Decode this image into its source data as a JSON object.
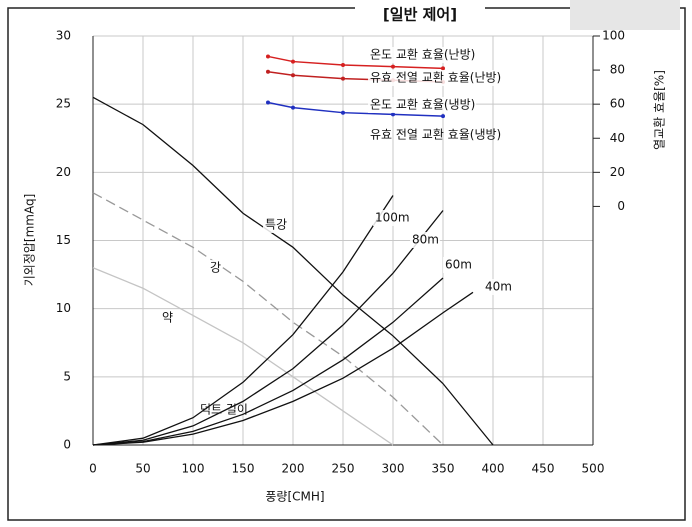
{
  "chart_data": {
    "type": "line",
    "title": "[일반 제어]",
    "x_label": "풍량[CMH]",
    "y_label": "기외정압[mmAq]",
    "y2_label": "열교환 효율[%]",
    "xlim": [
      0,
      500
    ],
    "xticks": [
      0,
      50,
      100,
      150,
      200,
      250,
      300,
      350,
      400,
      450,
      500
    ],
    "ylim": [
      0,
      30
    ],
    "yticks": [
      0,
      5,
      10,
      15,
      20,
      25,
      30
    ],
    "y2lim": [
      -140,
      100
    ],
    "y2ticks": [
      0,
      20,
      40,
      60,
      80,
      100
    ],
    "grid": true,
    "series": [
      {
        "name": "특강",
        "color": "#111111",
        "x": [
          0,
          50,
          100,
          150,
          200,
          250,
          300,
          350,
          400
        ],
        "values": [
          25.5,
          23.5,
          20.5,
          17,
          14.5,
          11,
          8,
          4.5,
          0
        ]
      },
      {
        "name": "강",
        "color": "#999999",
        "dash": true,
        "x": [
          0,
          50,
          100,
          150,
          200,
          250,
          300,
          350
        ],
        "values": [
          18.5,
          16.5,
          14.5,
          12,
          9,
          6.5,
          3.5,
          0
        ]
      },
      {
        "name": "약",
        "color": "#c4c4c4",
        "x": [
          0,
          50,
          100,
          150,
          200,
          250,
          300
        ],
        "values": [
          13,
          11.5,
          9.5,
          7.5,
          5,
          2.5,
          0
        ]
      },
      {
        "name": "100m",
        "color": "#111111",
        "x": [
          0,
          50,
          100,
          150,
          200,
          250,
          300
        ],
        "values": [
          0,
          0.5,
          2,
          4.6,
          8.1,
          12.7,
          18.3
        ]
      },
      {
        "name": "80m",
        "color": "#111111",
        "x": [
          0,
          50,
          100,
          150,
          200,
          250,
          300,
          350
        ],
        "values": [
          0,
          0.35,
          1.4,
          3.2,
          5.6,
          8.8,
          12.6,
          17.2
        ]
      },
      {
        "name": "60m",
        "color": "#111111",
        "x": [
          0,
          50,
          100,
          150,
          200,
          250,
          300,
          350
        ],
        "values": [
          0,
          0.25,
          1,
          2.25,
          4,
          6.25,
          9,
          12.25
        ]
      },
      {
        "name": "40m",
        "color": "#111111",
        "x": [
          0,
          50,
          100,
          150,
          200,
          250,
          300,
          350,
          380
        ],
        "values": [
          0,
          0.2,
          0.8,
          1.8,
          3.2,
          4.9,
          7.1,
          9.7,
          11.2
        ]
      },
      {
        "name": "온도 교환 효율(난방)",
        "color": "#d62020",
        "axis": "y2",
        "x": [
          175,
          200,
          250,
          300,
          350
        ],
        "values": [
          88,
          85,
          83,
          82,
          81
        ]
      },
      {
        "name": "유효 전열 교환 효율(난방)",
        "color": "#c02020",
        "axis": "y2",
        "x": [
          175,
          200,
          250,
          300,
          350
        ],
        "values": [
          79,
          77,
          75,
          74,
          73
        ]
      },
      {
        "name": "온도 교환 효율(냉방)",
        "color": "#2030c0",
        "axis": "y2",
        "x": [
          175,
          200,
          250,
          300,
          350
        ],
        "values": [
          61,
          58,
          55,
          54,
          53
        ]
      }
    ],
    "annotations": [
      "유효 전열 교환 효율(냉방)",
      "덕트 길이"
    ]
  }
}
